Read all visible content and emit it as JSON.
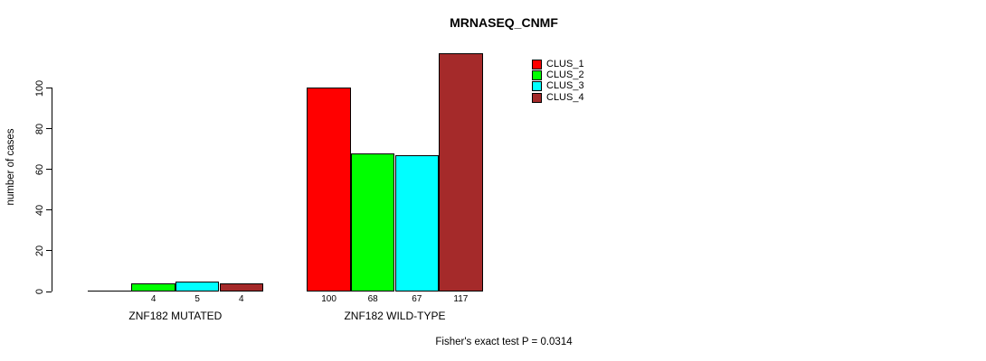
{
  "title": "MRNASEQ_CNMF",
  "footer": "Fisher's exact test P = 0.0314",
  "y_axis": {
    "label": "number of cases",
    "ticks": [
      "0",
      "20",
      "40",
      "60",
      "80",
      "100"
    ]
  },
  "legend": {
    "items": [
      {
        "label": "CLUS_1",
        "color": "#ff0000"
      },
      {
        "label": "CLUS_2",
        "color": "#00ff00"
      },
      {
        "label": "CLUS_3",
        "color": "#00ffff"
      },
      {
        "label": "CLUS_4",
        "color": "#a52a2a"
      }
    ]
  },
  "chart_data": {
    "type": "bar",
    "title": "MRNASEQ_CNMF",
    "xlabel": "",
    "ylabel": "number of cases",
    "ylim": [
      0,
      117
    ],
    "yticks": [
      0,
      20,
      40,
      60,
      80,
      100
    ],
    "grid": false,
    "legend_position": "top-right-inside",
    "categories": [
      "ZNF182 MUTATED",
      "ZNF182 WILD-TYPE"
    ],
    "series": [
      {
        "name": "CLUS_1",
        "color": "#ff0000",
        "values": [
          0,
          100
        ]
      },
      {
        "name": "CLUS_2",
        "color": "#00ff00",
        "values": [
          4,
          68
        ]
      },
      {
        "name": "CLUS_3",
        "color": "#00ffff",
        "values": [
          5,
          67
        ]
      },
      {
        "name": "CLUS_4",
        "color": "#a52a2a",
        "values": [
          4,
          117
        ]
      }
    ],
    "bar_value_labels": [
      [
        "",
        "4",
        "5",
        "4"
      ],
      [
        "100",
        "68",
        "67",
        "117"
      ]
    ],
    "annotation": "Fisher's exact test P = 0.0314"
  }
}
